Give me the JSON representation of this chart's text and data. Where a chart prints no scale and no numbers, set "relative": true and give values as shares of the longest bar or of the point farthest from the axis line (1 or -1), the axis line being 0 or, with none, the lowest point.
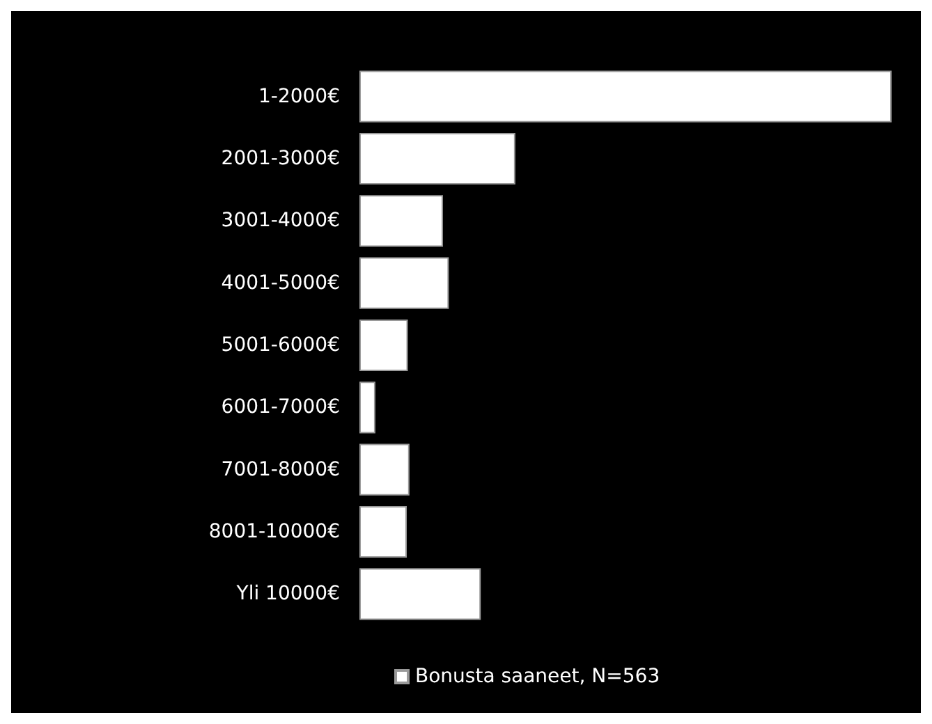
{
  "chart_data": {
    "type": "bar",
    "orientation": "horizontal",
    "relative": true,
    "categories": [
      "1-2000€",
      "2001-3000€",
      "3001-4000€",
      "4001-5000€",
      "5001-6000€",
      "6001-7000€",
      "7001-8000€",
      "8001-10000€",
      "Yli 10000€"
    ],
    "series": [
      {
        "name": "Bonusta saaneet, N=563",
        "color": "#ffffff",
        "values": [
          1,
          0.293,
          0.157,
          0.168,
          0.091,
          0.03,
          0.094,
          0.089,
          0.228
        ]
      }
    ],
    "legend": "bottom"
  }
}
